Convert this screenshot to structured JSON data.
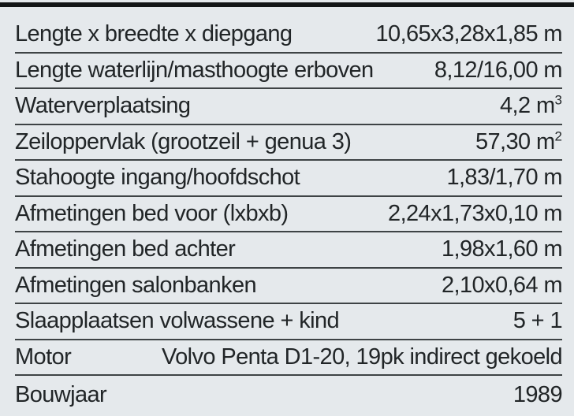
{
  "table": {
    "title": "boat-specifications",
    "rows": [
      {
        "label": "Lengte x breedte x diepgang",
        "value": "10,65x3,28x1,85 m",
        "sup": ""
      },
      {
        "label": "Lengte waterlijn/masthoogte erboven",
        "value": "8,12/16,00 m",
        "sup": ""
      },
      {
        "label": "Waterverplaatsing",
        "value": "4,2 m",
        "sup": "3"
      },
      {
        "label": "Zeiloppervlak (grootzeil + genua 3)",
        "value": "57,30 m",
        "sup": "2"
      },
      {
        "label": "Stahoogte ingang/hoofdschot",
        "value": "1,83/1,70 m",
        "sup": ""
      },
      {
        "label": "Afmetingen bed voor (lxbxb)",
        "value": "2,24x1,73x0,10 m",
        "sup": ""
      },
      {
        "label": "Afmetingen bed achter",
        "value": "1,98x1,60 m",
        "sup": ""
      },
      {
        "label": "Afmetingen salonbanken",
        "value": "2,10x0,64 m",
        "sup": ""
      },
      {
        "label": "Slaapplaatsen volwassene + kind",
        "value": "5 + 1",
        "sup": ""
      },
      {
        "label": "Motor",
        "value": "Volvo Penta D1-20, 19pk indirect gekoeld",
        "sup": ""
      },
      {
        "label": "Bouwjaar",
        "value": "1989",
        "sup": ""
      }
    ],
    "colors": {
      "background": "#e5e9ec",
      "text": "#212527",
      "rule": "#3e4345",
      "top_bar": "#131617"
    }
  }
}
